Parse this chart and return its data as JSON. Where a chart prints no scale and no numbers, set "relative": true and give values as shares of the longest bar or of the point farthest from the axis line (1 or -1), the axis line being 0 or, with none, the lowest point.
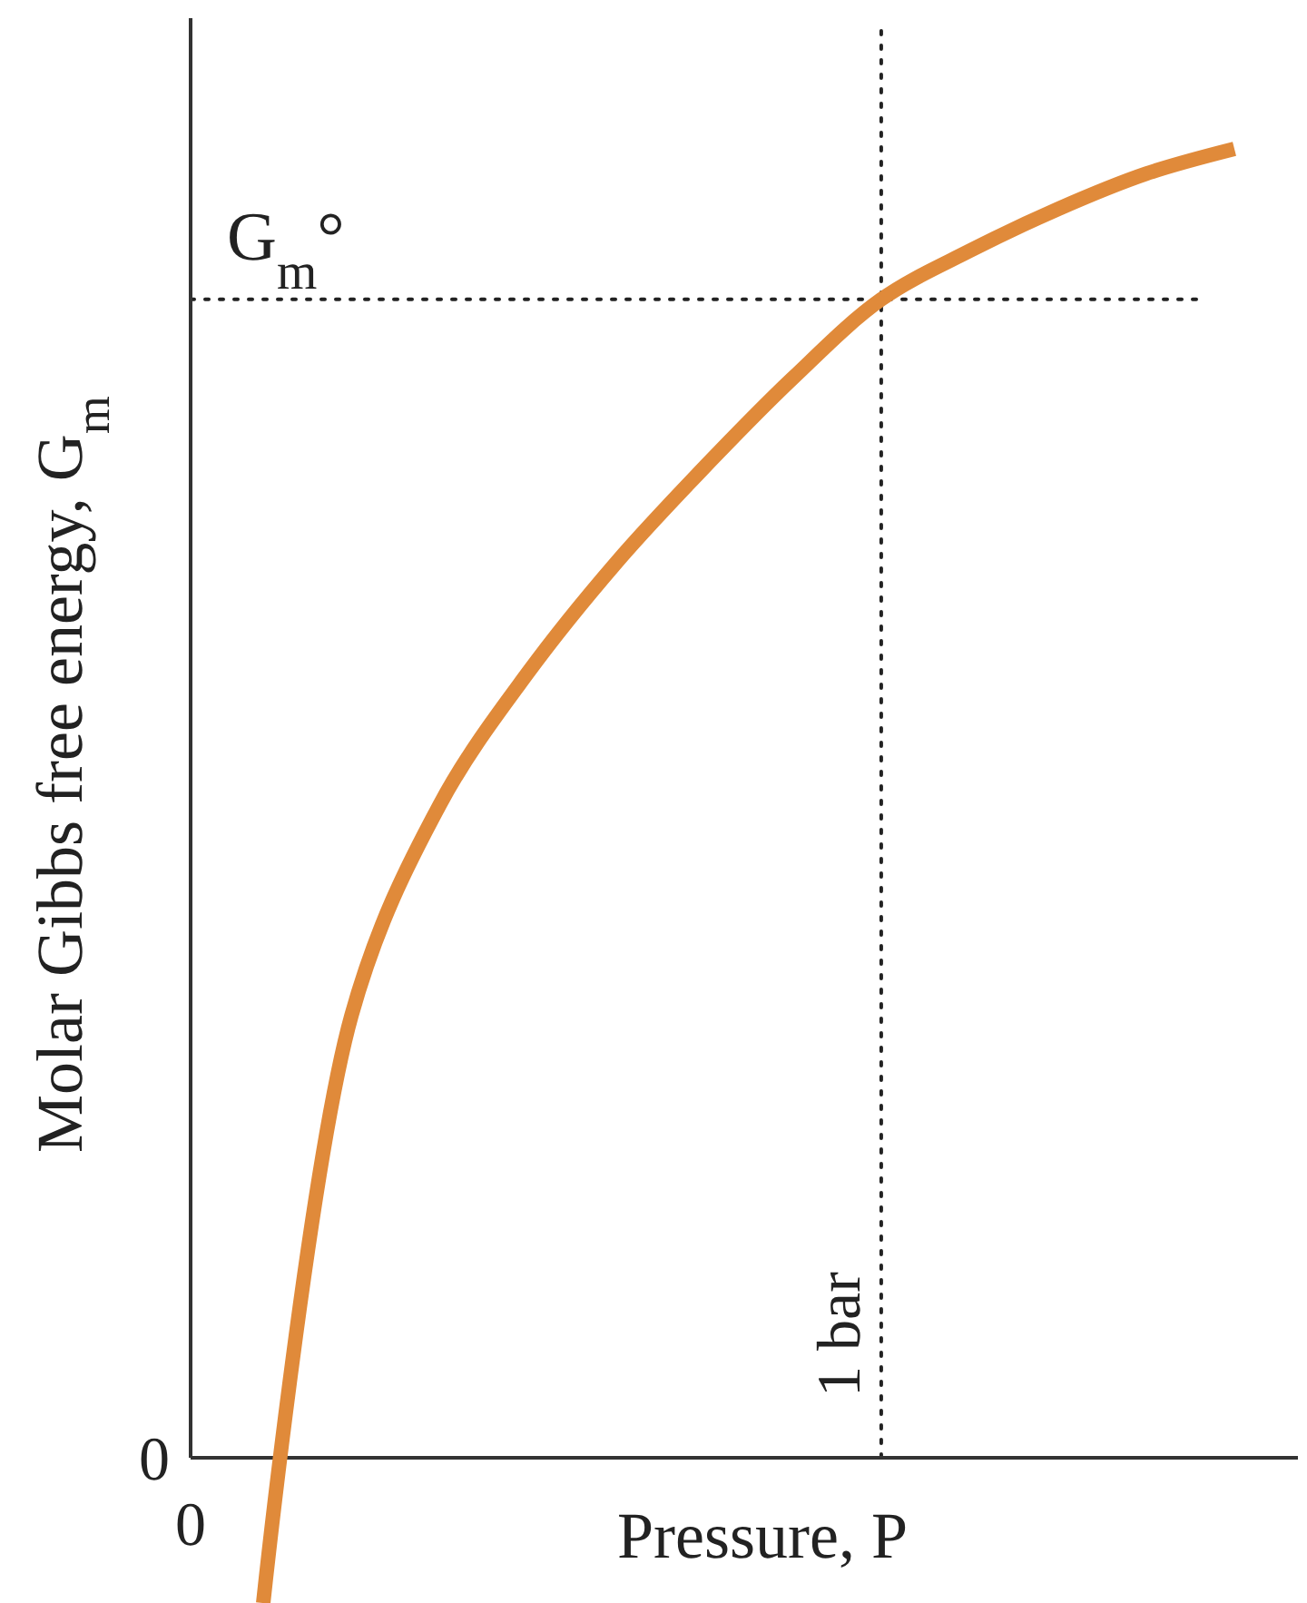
{
  "chart_data": {
    "type": "line",
    "xlabel": "Pressure, P",
    "ylabel": "Molar Gibbs free energy, G$_{m}$",
    "relative": true,
    "categories": [
      null,
      null,
      null,
      null,
      null,
      null,
      null,
      null,
      null,
      null,
      null,
      null
    ],
    "series": [
      {
        "color": "#e08a3a",
        "values": [
          -0.111,
          0.338,
          0.499,
          0.6,
          0.684,
          0.757,
          0.825,
          0.885,
          0.922,
          0.954,
          0.981,
          1.0
        ]
      }
    ],
    "ref_lines": [
      {
        "axis": "y",
        "value": 0.885,
        "label": "G$_{m}$°",
        "line_style": "dotted",
        "color": "#222222"
      }
    ],
    "annotations": [
      "0",
      "0",
      "1 bar"
    ],
    "marker": "none",
    "line_style": "solid"
  }
}
